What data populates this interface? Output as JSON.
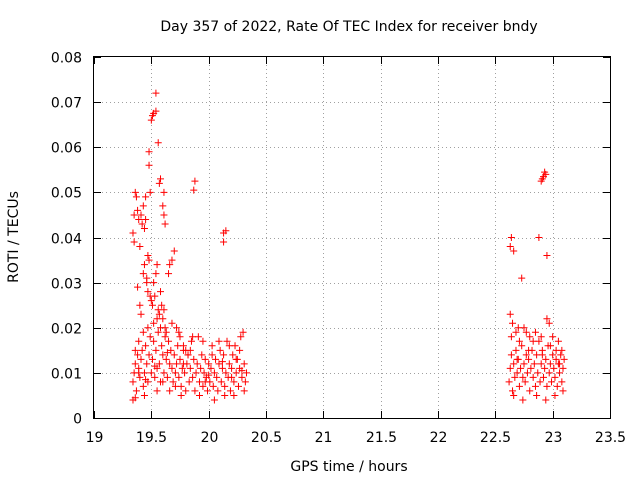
{
  "chart_data": {
    "type": "scatter",
    "title": "Day 357 of 2022, Rate Of TEC Index for receiver bndy",
    "xlabel": "GPS time / hours",
    "ylabel": "ROTI / TECUs",
    "xlim": [
      19,
      23.5
    ],
    "ylim": [
      0,
      0.08
    ],
    "xticks": [
      "19",
      "19.5",
      "20",
      "20.5",
      "21",
      "21.5",
      "22",
      "22.5",
      "23",
      "23.5"
    ],
    "yticks": [
      "0",
      "0.01",
      "0.02",
      "0.03",
      "0.04",
      "0.05",
      "0.06",
      "0.07",
      "0.08"
    ],
    "grid": true,
    "marker": "plus",
    "color": "#ff0000",
    "series": [
      {
        "name": "ROTI",
        "points": [
          [
            19.34,
            0.004
          ],
          [
            19.36,
            0.0045
          ],
          [
            19.35,
            0.039
          ],
          [
            19.34,
            0.041
          ],
          [
            19.35,
            0.045
          ],
          [
            19.37,
            0.049
          ],
          [
            19.36,
            0.05
          ],
          [
            19.38,
            0.046
          ],
          [
            19.39,
            0.044
          ],
          [
            19.41,
            0.045
          ],
          [
            19.42,
            0.043
          ],
          [
            19.43,
            0.047
          ],
          [
            19.45,
            0.044
          ],
          [
            19.44,
            0.042
          ],
          [
            19.4,
            0.038
          ],
          [
            19.38,
            0.029
          ],
          [
            19.4,
            0.025
          ],
          [
            19.41,
            0.023
          ],
          [
            19.43,
            0.032
          ],
          [
            19.44,
            0.034
          ],
          [
            19.46,
            0.031
          ],
          [
            19.47,
            0.036
          ],
          [
            19.48,
            0.035
          ],
          [
            19.46,
            0.03
          ],
          [
            19.47,
            0.028
          ],
          [
            19.49,
            0.027
          ],
          [
            19.5,
            0.026
          ],
          [
            19.52,
            0.03
          ],
          [
            19.53,
            0.027
          ],
          [
            19.51,
            0.025
          ],
          [
            19.55,
            0.022
          ],
          [
            19.56,
            0.024
          ],
          [
            19.57,
            0.023
          ],
          [
            19.58,
            0.028
          ],
          [
            19.59,
            0.025
          ],
          [
            19.6,
            0.022
          ],
          [
            19.61,
            0.024
          ],
          [
            19.62,
            0.02
          ],
          [
            19.55,
            0.034
          ],
          [
            19.54,
            0.032
          ],
          [
            19.48,
            0.056
          ],
          [
            19.48,
            0.059
          ],
          [
            19.5,
            0.066
          ],
          [
            19.51,
            0.067
          ],
          [
            19.52,
            0.0675
          ],
          [
            19.54,
            0.068
          ],
          [
            19.54,
            0.072
          ],
          [
            19.56,
            0.061
          ],
          [
            19.49,
            0.05
          ],
          [
            19.45,
            0.049
          ],
          [
            19.58,
            0.053
          ],
          [
            19.57,
            0.052
          ],
          [
            19.61,
            0.05
          ],
          [
            19.62,
            0.043
          ],
          [
            19.61,
            0.045
          ],
          [
            19.6,
            0.047
          ],
          [
            19.66,
            0.034
          ],
          [
            19.68,
            0.035
          ],
          [
            19.7,
            0.037
          ],
          [
            19.65,
            0.032
          ],
          [
            19.88,
            0.0525
          ],
          [
            19.87,
            0.0505
          ],
          [
            20.13,
            0.041
          ],
          [
            20.15,
            0.0415
          ],
          [
            20.13,
            0.039
          ],
          [
            19.72,
            0.02
          ],
          [
            19.75,
            0.018
          ],
          [
            19.78,
            0.016
          ],
          [
            19.8,
            0.015
          ],
          [
            19.82,
            0.014
          ],
          [
            19.34,
            0.008
          ],
          [
            19.35,
            0.01
          ],
          [
            19.36,
            0.012
          ],
          [
            19.37,
            0.006
          ],
          [
            19.38,
            0.014
          ],
          [
            19.39,
            0.011
          ],
          [
            19.4,
            0.009
          ],
          [
            19.41,
            0.013
          ],
          [
            19.42,
            0.015
          ],
          [
            19.43,
            0.007
          ],
          [
            19.44,
            0.01
          ],
          [
            19.45,
            0.016
          ],
          [
            19.46,
            0.012
          ],
          [
            19.47,
            0.008
          ],
          [
            19.48,
            0.014
          ],
          [
            19.49,
            0.018
          ],
          [
            19.5,
            0.01
          ],
          [
            19.51,
            0.013
          ],
          [
            19.52,
            0.017
          ],
          [
            19.53,
            0.009
          ],
          [
            19.54,
            0.015
          ],
          [
            19.55,
            0.011
          ],
          [
            19.56,
            0.019
          ],
          [
            19.57,
            0.012
          ],
          [
            19.58,
            0.008
          ],
          [
            19.59,
            0.016
          ],
          [
            19.6,
            0.014
          ],
          [
            19.61,
            0.01
          ],
          [
            19.62,
            0.018
          ],
          [
            19.63,
            0.013
          ],
          [
            19.64,
            0.009
          ],
          [
            19.65,
            0.017
          ],
          [
            19.66,
            0.012
          ],
          [
            19.67,
            0.015
          ],
          [
            19.68,
            0.011
          ],
          [
            19.69,
            0.008
          ],
          [
            19.7,
            0.014
          ],
          [
            19.71,
            0.01
          ],
          [
            19.72,
            0.012
          ],
          [
            19.73,
            0.016
          ],
          [
            19.74,
            0.009
          ],
          [
            19.75,
            0.013
          ],
          [
            19.76,
            0.007
          ],
          [
            19.77,
            0.011
          ],
          [
            19.78,
            0.015
          ],
          [
            19.79,
            0.01
          ],
          [
            19.8,
            0.006
          ],
          [
            19.81,
            0.012
          ],
          [
            19.82,
            0.014
          ],
          [
            19.83,
            0.008
          ],
          [
            19.84,
            0.011
          ],
          [
            19.85,
            0.017
          ],
          [
            19.86,
            0.009
          ],
          [
            19.87,
            0.013
          ],
          [
            19.88,
            0.006
          ],
          [
            19.89,
            0.01
          ],
          [
            19.9,
            0.012
          ],
          [
            19.91,
            0.018
          ],
          [
            19.92,
            0.008
          ],
          [
            19.93,
            0.011
          ],
          [
            19.94,
            0.014
          ],
          [
            19.95,
            0.007
          ],
          [
            19.96,
            0.01
          ],
          [
            19.97,
            0.013
          ],
          [
            19.98,
            0.009
          ],
          [
            19.99,
            0.006
          ],
          [
            20.0,
            0.012
          ],
          [
            20.01,
            0.008
          ],
          [
            20.02,
            0.011
          ],
          [
            20.03,
            0.014
          ],
          [
            20.04,
            0.007
          ],
          [
            20.05,
            0.01
          ],
          [
            20.06,
            0.013
          ],
          [
            20.07,
            0.009
          ],
          [
            20.08,
            0.006
          ],
          [
            20.09,
            0.012
          ],
          [
            20.1,
            0.015
          ],
          [
            20.11,
            0.008
          ],
          [
            20.12,
            0.011
          ],
          [
            20.13,
            0.014
          ],
          [
            20.14,
            0.007
          ],
          [
            20.15,
            0.01
          ],
          [
            20.16,
            0.017
          ],
          [
            20.17,
            0.009
          ],
          [
            20.18,
            0.012
          ],
          [
            20.19,
            0.006
          ],
          [
            20.2,
            0.011
          ],
          [
            20.21,
            0.014
          ],
          [
            20.22,
            0.008
          ],
          [
            20.23,
            0.016
          ],
          [
            20.24,
            0.01
          ],
          [
            20.25,
            0.013
          ],
          [
            20.26,
            0.007
          ],
          [
            20.27,
            0.011
          ],
          [
            20.28,
            0.018
          ],
          [
            20.29,
            0.009
          ],
          [
            20.3,
            0.019
          ],
          [
            20.31,
            0.012
          ],
          [
            20.32,
            0.008
          ],
          [
            20.33,
            0.01
          ],
          [
            19.36,
            0.015
          ],
          [
            19.39,
            0.017
          ],
          [
            19.43,
            0.019
          ],
          [
            19.47,
            0.02
          ],
          [
            19.52,
            0.021
          ],
          [
            19.58,
            0.02
          ],
          [
            19.63,
            0.019
          ],
          [
            19.68,
            0.021
          ],
          [
            19.74,
            0.019
          ],
          [
            19.86,
            0.018
          ],
          [
            19.95,
            0.017
          ],
          [
            20.09,
            0.017
          ],
          [
            20.18,
            0.016
          ],
          [
            20.27,
            0.015
          ],
          [
            19.44,
            0.005
          ],
          [
            19.66,
            0.006
          ],
          [
            19.92,
            0.005
          ],
          [
            20.05,
            0.004
          ],
          [
            20.22,
            0.005
          ],
          [
            19.55,
            0.006
          ],
          [
            19.76,
            0.005
          ],
          [
            20.14,
            0.005
          ],
          [
            20.31,
            0.006
          ],
          [
            19.6,
            0.008
          ],
          [
            19.71,
            0.007
          ],
          [
            19.97,
            0.008
          ],
          [
            20.2,
            0.009
          ],
          [
            19.84,
            0.015
          ],
          [
            20.03,
            0.016
          ],
          [
            20.24,
            0.013
          ],
          [
            19.39,
            0.01
          ],
          [
            19.45,
            0.0085
          ],
          [
            19.53,
            0.0115
          ],
          [
            19.64,
            0.0145
          ],
          [
            19.78,
            0.012
          ],
          [
            20.0,
            0.0095
          ],
          [
            20.12,
            0.0125
          ],
          [
            20.29,
            0.0105
          ],
          [
            22.63,
            0.038
          ],
          [
            22.64,
            0.04
          ],
          [
            22.66,
            0.037
          ],
          [
            22.73,
            0.031
          ],
          [
            22.88,
            0.04
          ],
          [
            22.95,
            0.036
          ],
          [
            22.9,
            0.0525
          ],
          [
            22.92,
            0.0535
          ],
          [
            22.93,
            0.0545
          ],
          [
            22.94,
            0.054
          ],
          [
            22.91,
            0.053
          ],
          [
            22.63,
            0.023
          ],
          [
            22.65,
            0.021
          ],
          [
            22.68,
            0.019
          ],
          [
            22.71,
            0.017
          ],
          [
            22.75,
            0.02
          ],
          [
            22.8,
            0.018
          ],
          [
            22.85,
            0.019
          ],
          [
            22.95,
            0.022
          ],
          [
            22.97,
            0.021
          ],
          [
            23.0,
            0.018
          ],
          [
            23.05,
            0.017
          ],
          [
            23.08,
            0.015
          ],
          [
            22.62,
            0.008
          ],
          [
            22.63,
            0.011
          ],
          [
            22.64,
            0.014
          ],
          [
            22.65,
            0.006
          ],
          [
            22.66,
            0.012
          ],
          [
            22.67,
            0.009
          ],
          [
            22.68,
            0.015
          ],
          [
            22.69,
            0.01
          ],
          [
            22.7,
            0.013
          ],
          [
            22.71,
            0.007
          ],
          [
            22.72,
            0.011
          ],
          [
            22.73,
            0.016
          ],
          [
            22.74,
            0.009
          ],
          [
            22.75,
            0.012
          ],
          [
            22.76,
            0.008
          ],
          [
            22.77,
            0.014
          ],
          [
            22.78,
            0.01
          ],
          [
            22.79,
            0.013
          ],
          [
            22.8,
            0.006
          ],
          [
            22.81,
            0.011
          ],
          [
            22.82,
            0.015
          ],
          [
            22.83,
            0.009
          ],
          [
            22.84,
            0.012
          ],
          [
            22.85,
            0.007
          ],
          [
            22.86,
            0.014
          ],
          [
            22.87,
            0.01
          ],
          [
            22.88,
            0.017
          ],
          [
            22.89,
            0.008
          ],
          [
            22.9,
            0.012
          ],
          [
            22.91,
            0.015
          ],
          [
            22.92,
            0.009
          ],
          [
            22.93,
            0.011
          ],
          [
            22.94,
            0.013
          ],
          [
            22.95,
            0.007
          ],
          [
            22.96,
            0.016
          ],
          [
            22.97,
            0.01
          ],
          [
            22.98,
            0.012
          ],
          [
            22.99,
            0.008
          ],
          [
            23.0,
            0.014
          ],
          [
            23.01,
            0.011
          ],
          [
            23.02,
            0.009
          ],
          [
            23.03,
            0.013
          ],
          [
            23.04,
            0.007
          ],
          [
            23.05,
            0.012
          ],
          [
            23.06,
            0.01
          ],
          [
            23.07,
            0.014
          ],
          [
            23.08,
            0.008
          ],
          [
            23.09,
            0.011
          ],
          [
            23.1,
            0.013
          ],
          [
            22.64,
            0.018
          ],
          [
            22.7,
            0.02
          ],
          [
            22.77,
            0.019
          ],
          [
            22.83,
            0.017
          ],
          [
            22.9,
            0.018
          ],
          [
            22.98,
            0.016
          ],
          [
            23.03,
            0.015
          ],
          [
            22.66,
            0.005
          ],
          [
            22.74,
            0.004
          ],
          [
            22.86,
            0.005
          ],
          [
            22.94,
            0.004
          ],
          [
            23.02,
            0.005
          ],
          [
            23.09,
            0.006
          ],
          [
            22.69,
            0.013
          ],
          [
            22.79,
            0.015
          ],
          [
            22.91,
            0.014
          ],
          [
            23.06,
            0.012
          ]
        ]
      }
    ]
  }
}
